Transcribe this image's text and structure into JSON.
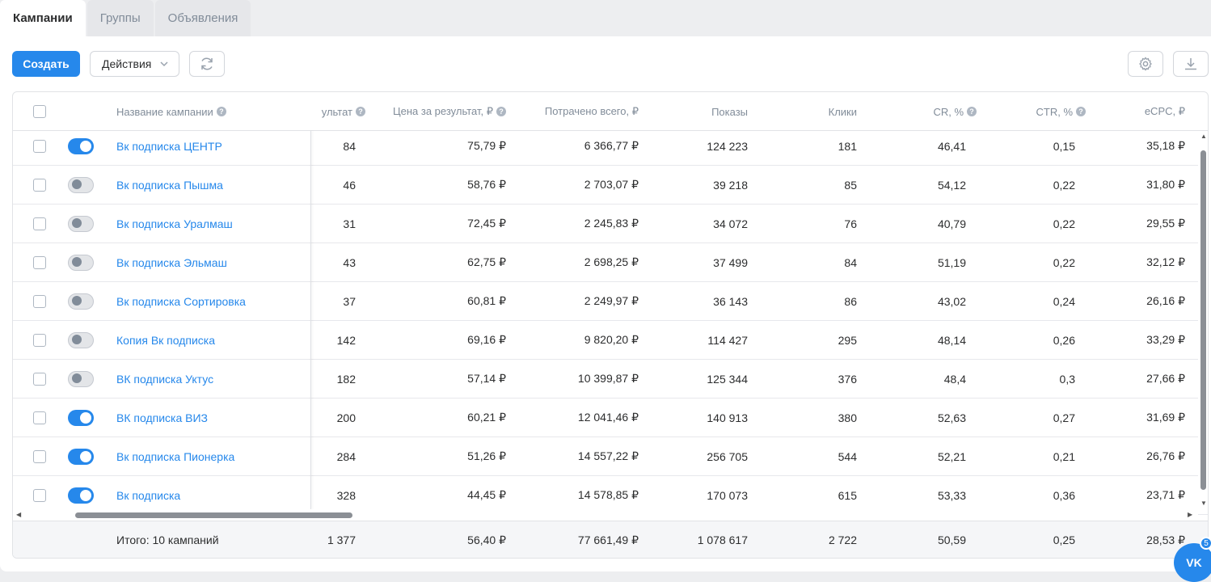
{
  "tabs": [
    {
      "label": "Кампании",
      "active": true
    },
    {
      "label": "Группы",
      "active": false
    },
    {
      "label": "Объявления",
      "active": false
    }
  ],
  "toolbar": {
    "create_label": "Создать",
    "actions_label": "Действия"
  },
  "columns": {
    "name": "Название кампании",
    "result": "ультат",
    "price": "Цена за результат, ₽",
    "spent": "Потрачено всего, ₽",
    "shows": "Показы",
    "clicks": "Клики",
    "cr": "CR, %",
    "ctr": "CTR, %",
    "ecpc": "eCPC, ₽"
  },
  "rows": [
    {
      "enabled": true,
      "name": "Вк подписка ЦЕНТР",
      "result": "84",
      "price": "75,79 ₽",
      "spent": "6 366,77 ₽",
      "shows": "124 223",
      "clicks": "181",
      "cr": "46,41",
      "ctr": "0,15",
      "ecpc": "35,18 ₽"
    },
    {
      "enabled": false,
      "name": "Вк подписка Пышма",
      "result": "46",
      "price": "58,76 ₽",
      "spent": "2 703,07 ₽",
      "shows": "39 218",
      "clicks": "85",
      "cr": "54,12",
      "ctr": "0,22",
      "ecpc": "31,80 ₽"
    },
    {
      "enabled": false,
      "name": "Вк подписка Уралмаш",
      "result": "31",
      "price": "72,45 ₽",
      "spent": "2 245,83 ₽",
      "shows": "34 072",
      "clicks": "76",
      "cr": "40,79",
      "ctr": "0,22",
      "ecpc": "29,55 ₽"
    },
    {
      "enabled": false,
      "name": "Вк подписка Эльмаш",
      "result": "43",
      "price": "62,75 ₽",
      "spent": "2 698,25 ₽",
      "shows": "37 499",
      "clicks": "84",
      "cr": "51,19",
      "ctr": "0,22",
      "ecpc": "32,12 ₽"
    },
    {
      "enabled": false,
      "name": "Вк подписка Сортировка",
      "result": "37",
      "price": "60,81 ₽",
      "spent": "2 249,97 ₽",
      "shows": "36 143",
      "clicks": "86",
      "cr": "43,02",
      "ctr": "0,24",
      "ecpc": "26,16 ₽"
    },
    {
      "enabled": false,
      "name": "Копия Вк подписка",
      "result": "142",
      "price": "69,16 ₽",
      "spent": "9 820,20 ₽",
      "shows": "114 427",
      "clicks": "295",
      "cr": "48,14",
      "ctr": "0,26",
      "ecpc": "33,29 ₽"
    },
    {
      "enabled": false,
      "name": "ВК подписка Уктус",
      "result": "182",
      "price": "57,14 ₽",
      "spent": "10 399,87 ₽",
      "shows": "125 344",
      "clicks": "376",
      "cr": "48,4",
      "ctr": "0,3",
      "ecpc": "27,66 ₽"
    },
    {
      "enabled": true,
      "name": "ВК подписка ВИЗ",
      "result": "200",
      "price": "60,21 ₽",
      "spent": "12 041,46 ₽",
      "shows": "140 913",
      "clicks": "380",
      "cr": "52,63",
      "ctr": "0,27",
      "ecpc": "31,69 ₽"
    },
    {
      "enabled": true,
      "name": "Вк подписка Пионерка",
      "result": "284",
      "price": "51,26 ₽",
      "spent": "14 557,22 ₽",
      "shows": "256 705",
      "clicks": "544",
      "cr": "52,21",
      "ctr": "0,21",
      "ecpc": "26,76 ₽"
    },
    {
      "enabled": true,
      "name": "Вк подписка",
      "result": "328",
      "price": "44,45 ₽",
      "spent": "14 578,85 ₽",
      "shows": "170 073",
      "clicks": "615",
      "cr": "53,33",
      "ctr": "0,36",
      "ecpc": "23,71 ₽"
    }
  ],
  "totals": {
    "label": "Итого: 10 кампаний",
    "result": "1 377",
    "price": "56,40 ₽",
    "spent": "77 661,49 ₽",
    "shows": "1 078 617",
    "clicks": "2 722",
    "cr": "50,59",
    "ctr": "0,25",
    "ecpc": "28,53 ₽"
  },
  "widget": {
    "label": "VK",
    "badge_count": "5"
  },
  "colors": {
    "accent": "#2688eb",
    "link": "#2688eb"
  }
}
